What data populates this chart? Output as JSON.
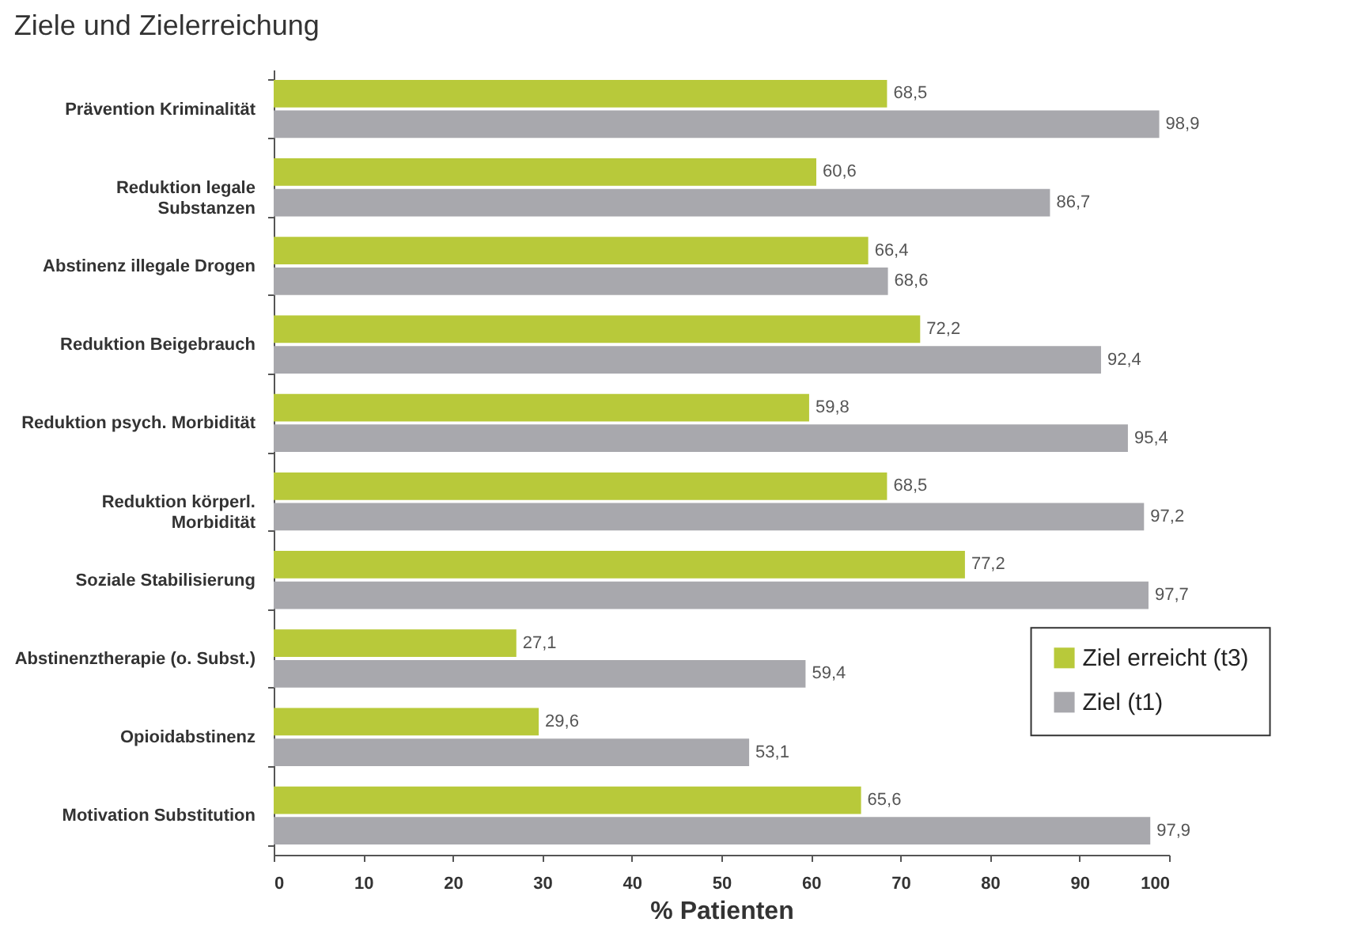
{
  "chart_data": {
    "type": "bar",
    "orientation": "horizontal",
    "title": "Ziele und Zielerreichung",
    "xlabel": "% Patienten",
    "categories": [
      "Prävention Kriminalität",
      "Reduktion legale\nSubstanzen",
      "Abstinenz illegale Drogen",
      "Reduktion Beigebrauch",
      "Reduktion psych. Morbidität",
      "Reduktion körperl.\nMorbidität",
      "Soziale Stabilisierung",
      "Abstinenztherapie (o. Subst.)",
      "Opioidabstinenz",
      "Motivation Substitution"
    ],
    "series": [
      {
        "name": "Ziel erreicht (t3)",
        "color": "#b8c93a",
        "values": [
          68.5,
          60.6,
          66.4,
          72.2,
          59.8,
          68.5,
          77.2,
          27.1,
          29.6,
          65.6
        ],
        "value_labels": [
          "68,5",
          "60,6",
          "66,4",
          "72,2",
          "59,8",
          "68,5",
          "77,2",
          "27,1",
          "29,6",
          "65,6"
        ]
      },
      {
        "name": "Ziel (t1)",
        "color": "#a8a8ad",
        "values": [
          98.9,
          86.7,
          68.6,
          92.4,
          95.4,
          97.2,
          97.7,
          59.4,
          53.1,
          97.9
        ],
        "value_labels": [
          "98,9",
          "86,7",
          "68,6",
          "92,4",
          "95,4",
          "97,2",
          "97,7",
          "59,4",
          "53,1",
          "97,9"
        ]
      }
    ],
    "xlim": [
      0,
      100
    ],
    "xticks": [
      0,
      10,
      20,
      30,
      40,
      50,
      60,
      70,
      80,
      90,
      100
    ],
    "grid": false,
    "legend": "bottom right"
  }
}
